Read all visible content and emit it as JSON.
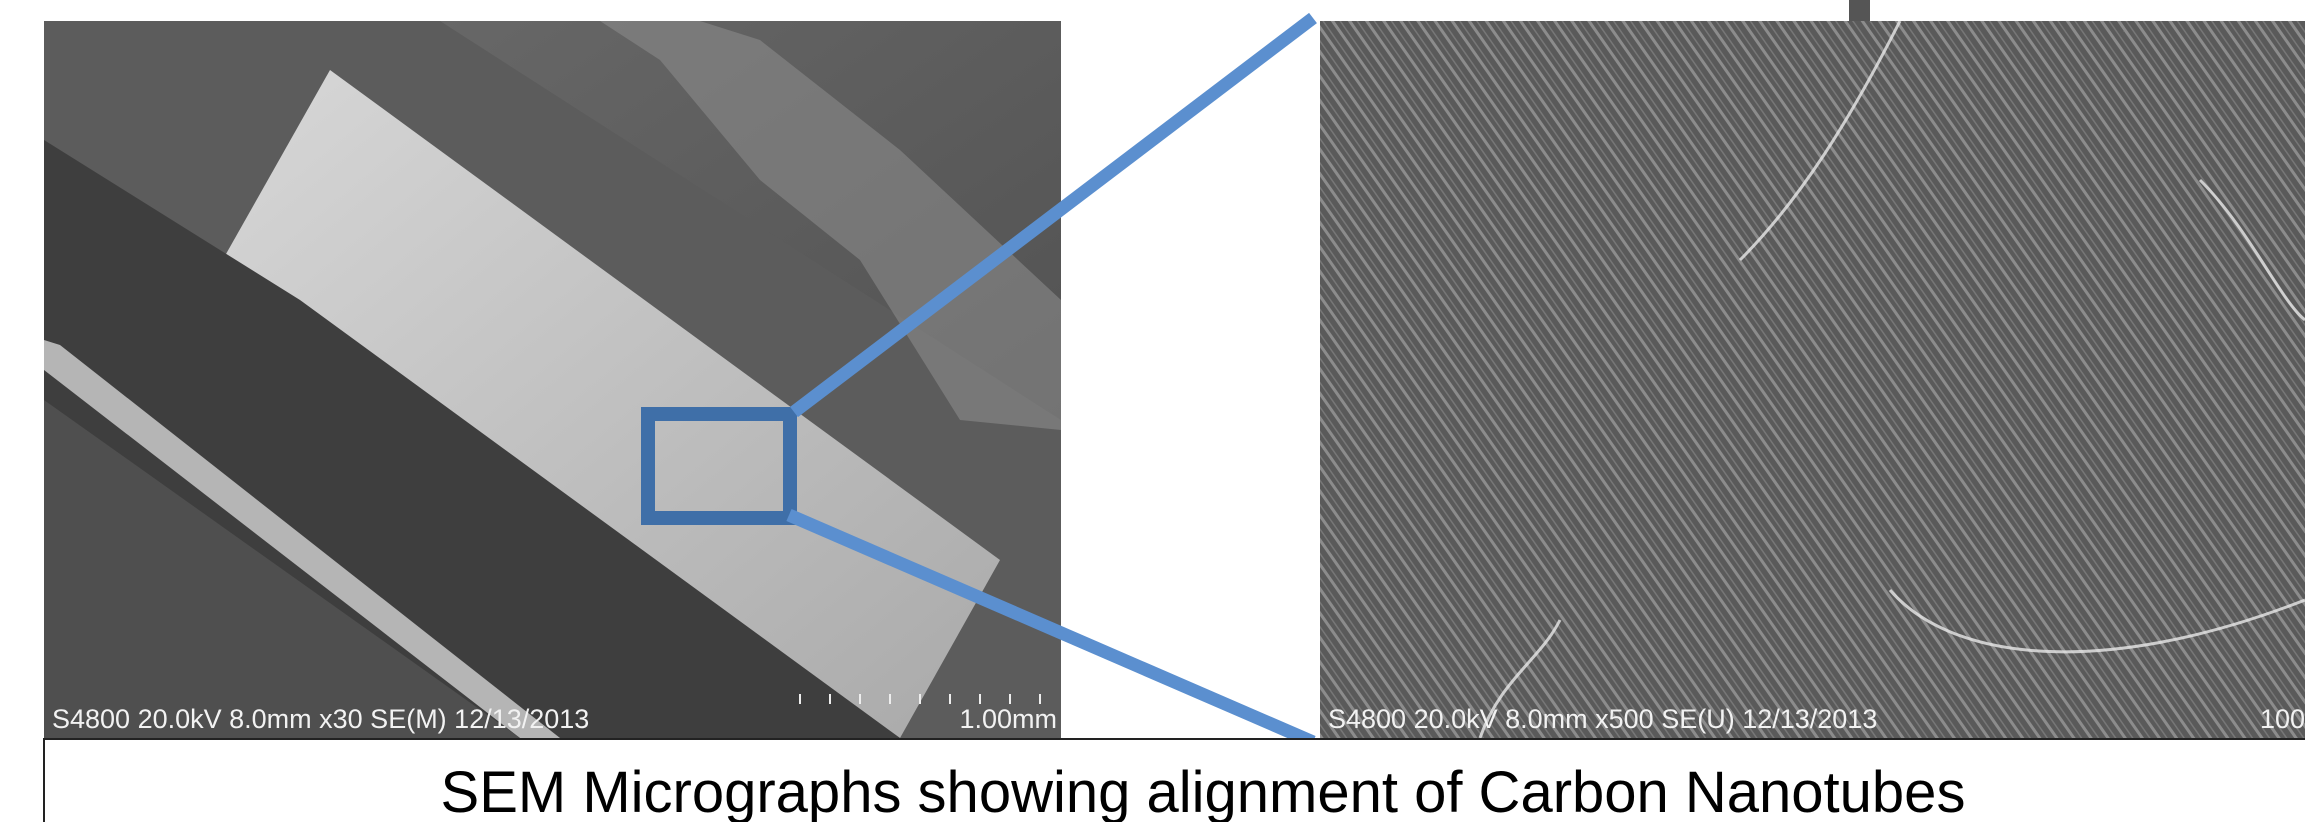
{
  "figure": {
    "caption": "SEM Micrographs showing alignment of Carbon Nanotubes",
    "left_image": {
      "info": "S4800 20.0kV 8.0mm x30 SE(M) 12/13/2013",
      "scale": "1.00mm"
    },
    "right_image": {
      "info": "S4800 20.0kV 8.0mm x500 SE(U) 12/13/2013",
      "scale": "100"
    }
  }
}
